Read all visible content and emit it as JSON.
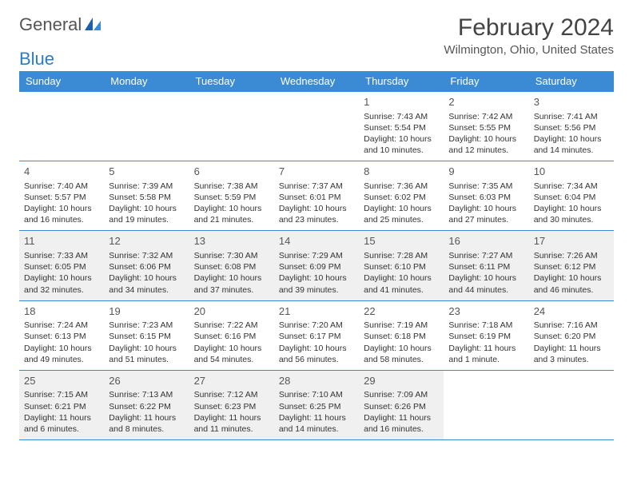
{
  "logo": {
    "text_a": "General",
    "text_b": "Blue"
  },
  "title": "February 2024",
  "location": "Wilmington, Ohio, United States",
  "colors": {
    "header_bg": "#3b8bd4",
    "border": "#3b8bd4",
    "shaded": "#f0f0f0",
    "text": "#333333"
  },
  "day_headers": [
    "Sunday",
    "Monday",
    "Tuesday",
    "Wednesday",
    "Thursday",
    "Friday",
    "Saturday"
  ],
  "weeks": [
    [
      null,
      null,
      null,
      null,
      {
        "n": "1",
        "sr": "Sunrise: 7:43 AM",
        "ss": "Sunset: 5:54 PM",
        "dl": "Daylight: 10 hours and 10 minutes."
      },
      {
        "n": "2",
        "sr": "Sunrise: 7:42 AM",
        "ss": "Sunset: 5:55 PM",
        "dl": "Daylight: 10 hours and 12 minutes."
      },
      {
        "n": "3",
        "sr": "Sunrise: 7:41 AM",
        "ss": "Sunset: 5:56 PM",
        "dl": "Daylight: 10 hours and 14 minutes."
      }
    ],
    [
      {
        "n": "4",
        "sr": "Sunrise: 7:40 AM",
        "ss": "Sunset: 5:57 PM",
        "dl": "Daylight: 10 hours and 16 minutes."
      },
      {
        "n": "5",
        "sr": "Sunrise: 7:39 AM",
        "ss": "Sunset: 5:58 PM",
        "dl": "Daylight: 10 hours and 19 minutes."
      },
      {
        "n": "6",
        "sr": "Sunrise: 7:38 AM",
        "ss": "Sunset: 5:59 PM",
        "dl": "Daylight: 10 hours and 21 minutes."
      },
      {
        "n": "7",
        "sr": "Sunrise: 7:37 AM",
        "ss": "Sunset: 6:01 PM",
        "dl": "Daylight: 10 hours and 23 minutes."
      },
      {
        "n": "8",
        "sr": "Sunrise: 7:36 AM",
        "ss": "Sunset: 6:02 PM",
        "dl": "Daylight: 10 hours and 25 minutes."
      },
      {
        "n": "9",
        "sr": "Sunrise: 7:35 AM",
        "ss": "Sunset: 6:03 PM",
        "dl": "Daylight: 10 hours and 27 minutes."
      },
      {
        "n": "10",
        "sr": "Sunrise: 7:34 AM",
        "ss": "Sunset: 6:04 PM",
        "dl": "Daylight: 10 hours and 30 minutes."
      }
    ],
    [
      {
        "n": "11",
        "sr": "Sunrise: 7:33 AM",
        "ss": "Sunset: 6:05 PM",
        "dl": "Daylight: 10 hours and 32 minutes.",
        "shaded": true
      },
      {
        "n": "12",
        "sr": "Sunrise: 7:32 AM",
        "ss": "Sunset: 6:06 PM",
        "dl": "Daylight: 10 hours and 34 minutes.",
        "shaded": true
      },
      {
        "n": "13",
        "sr": "Sunrise: 7:30 AM",
        "ss": "Sunset: 6:08 PM",
        "dl": "Daylight: 10 hours and 37 minutes.",
        "shaded": true
      },
      {
        "n": "14",
        "sr": "Sunrise: 7:29 AM",
        "ss": "Sunset: 6:09 PM",
        "dl": "Daylight: 10 hours and 39 minutes.",
        "shaded": true
      },
      {
        "n": "15",
        "sr": "Sunrise: 7:28 AM",
        "ss": "Sunset: 6:10 PM",
        "dl": "Daylight: 10 hours and 41 minutes.",
        "shaded": true
      },
      {
        "n": "16",
        "sr": "Sunrise: 7:27 AM",
        "ss": "Sunset: 6:11 PM",
        "dl": "Daylight: 10 hours and 44 minutes.",
        "shaded": true
      },
      {
        "n": "17",
        "sr": "Sunrise: 7:26 AM",
        "ss": "Sunset: 6:12 PM",
        "dl": "Daylight: 10 hours and 46 minutes.",
        "shaded": true
      }
    ],
    [
      {
        "n": "18",
        "sr": "Sunrise: 7:24 AM",
        "ss": "Sunset: 6:13 PM",
        "dl": "Daylight: 10 hours and 49 minutes."
      },
      {
        "n": "19",
        "sr": "Sunrise: 7:23 AM",
        "ss": "Sunset: 6:15 PM",
        "dl": "Daylight: 10 hours and 51 minutes."
      },
      {
        "n": "20",
        "sr": "Sunrise: 7:22 AM",
        "ss": "Sunset: 6:16 PM",
        "dl": "Daylight: 10 hours and 54 minutes."
      },
      {
        "n": "21",
        "sr": "Sunrise: 7:20 AM",
        "ss": "Sunset: 6:17 PM",
        "dl": "Daylight: 10 hours and 56 minutes."
      },
      {
        "n": "22",
        "sr": "Sunrise: 7:19 AM",
        "ss": "Sunset: 6:18 PM",
        "dl": "Daylight: 10 hours and 58 minutes."
      },
      {
        "n": "23",
        "sr": "Sunrise: 7:18 AM",
        "ss": "Sunset: 6:19 PM",
        "dl": "Daylight: 11 hours and 1 minute."
      },
      {
        "n": "24",
        "sr": "Sunrise: 7:16 AM",
        "ss": "Sunset: 6:20 PM",
        "dl": "Daylight: 11 hours and 3 minutes."
      }
    ],
    [
      {
        "n": "25",
        "sr": "Sunrise: 7:15 AM",
        "ss": "Sunset: 6:21 PM",
        "dl": "Daylight: 11 hours and 6 minutes.",
        "shaded": true
      },
      {
        "n": "26",
        "sr": "Sunrise: 7:13 AM",
        "ss": "Sunset: 6:22 PM",
        "dl": "Daylight: 11 hours and 8 minutes.",
        "shaded": true
      },
      {
        "n": "27",
        "sr": "Sunrise: 7:12 AM",
        "ss": "Sunset: 6:23 PM",
        "dl": "Daylight: 11 hours and 11 minutes.",
        "shaded": true
      },
      {
        "n": "28",
        "sr": "Sunrise: 7:10 AM",
        "ss": "Sunset: 6:25 PM",
        "dl": "Daylight: 11 hours and 14 minutes.",
        "shaded": true
      },
      {
        "n": "29",
        "sr": "Sunrise: 7:09 AM",
        "ss": "Sunset: 6:26 PM",
        "dl": "Daylight: 11 hours and 16 minutes.",
        "shaded": true
      },
      null,
      null
    ]
  ]
}
